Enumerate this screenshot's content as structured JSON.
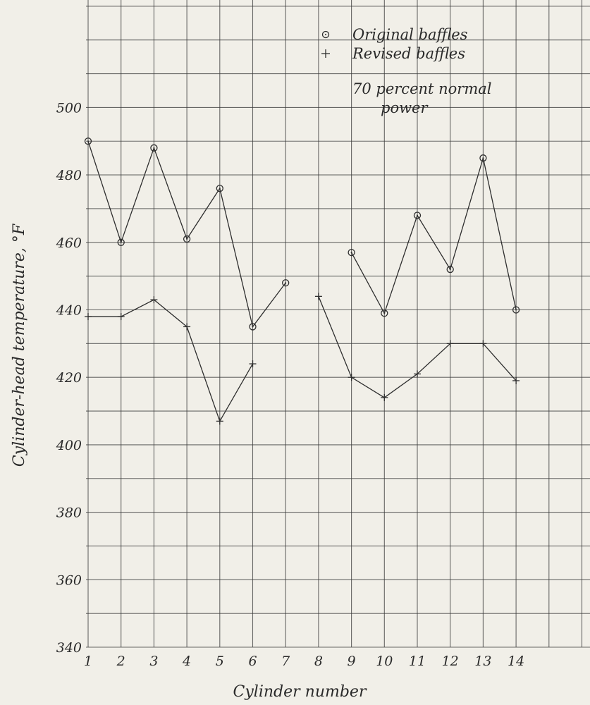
{
  "chart_data": {
    "type": "line",
    "ylabel": "Cylinder-head temperature, °F",
    "xlabel": "Cylinder number",
    "x_ticks": [
      "1",
      "2",
      "3",
      "4",
      "5",
      "6",
      "7",
      "8",
      "9",
      "10",
      "11",
      "12",
      "13",
      "14"
    ],
    "y_ticks": [
      "340",
      "360",
      "380",
      "400",
      "420",
      "440",
      "460",
      "480",
      "500"
    ],
    "ylim": [
      340,
      518
    ],
    "grid": true,
    "legend_placement": "top-right",
    "annotation": [
      "70 percent normal",
      "power"
    ],
    "series": [
      {
        "name": "Original baffles",
        "marker": "circle",
        "points": [
          {
            "x": 1,
            "y": 490
          },
          {
            "x": 2,
            "y": 460
          },
          {
            "x": 3,
            "y": 488
          },
          {
            "x": 4,
            "y": 461
          },
          {
            "x": 5,
            "y": 476
          },
          {
            "x": 6,
            "y": 435
          },
          {
            "x": 7,
            "y": 448
          },
          {
            "x": 9,
            "y": 457
          },
          {
            "x": 10,
            "y": 439
          },
          {
            "x": 11,
            "y": 468
          },
          {
            "x": 12,
            "y": 452
          },
          {
            "x": 13,
            "y": 485
          },
          {
            "x": 14,
            "y": 440
          }
        ]
      },
      {
        "name": "Revised baffles",
        "marker": "plus",
        "points": [
          {
            "x": 1,
            "y": 438
          },
          {
            "x": 2,
            "y": 438
          },
          {
            "x": 3,
            "y": 443
          },
          {
            "x": 4,
            "y": 435
          },
          {
            "x": 5,
            "y": 407
          },
          {
            "x": 6,
            "y": 424
          },
          {
            "x": 8,
            "y": 444
          },
          {
            "x": 9,
            "y": 420
          },
          {
            "x": 10,
            "y": 414
          },
          {
            "x": 11,
            "y": 421
          },
          {
            "x": 12,
            "y": 430
          },
          {
            "x": 13,
            "y": 430
          },
          {
            "x": 14,
            "y": 419
          }
        ]
      }
    ]
  }
}
